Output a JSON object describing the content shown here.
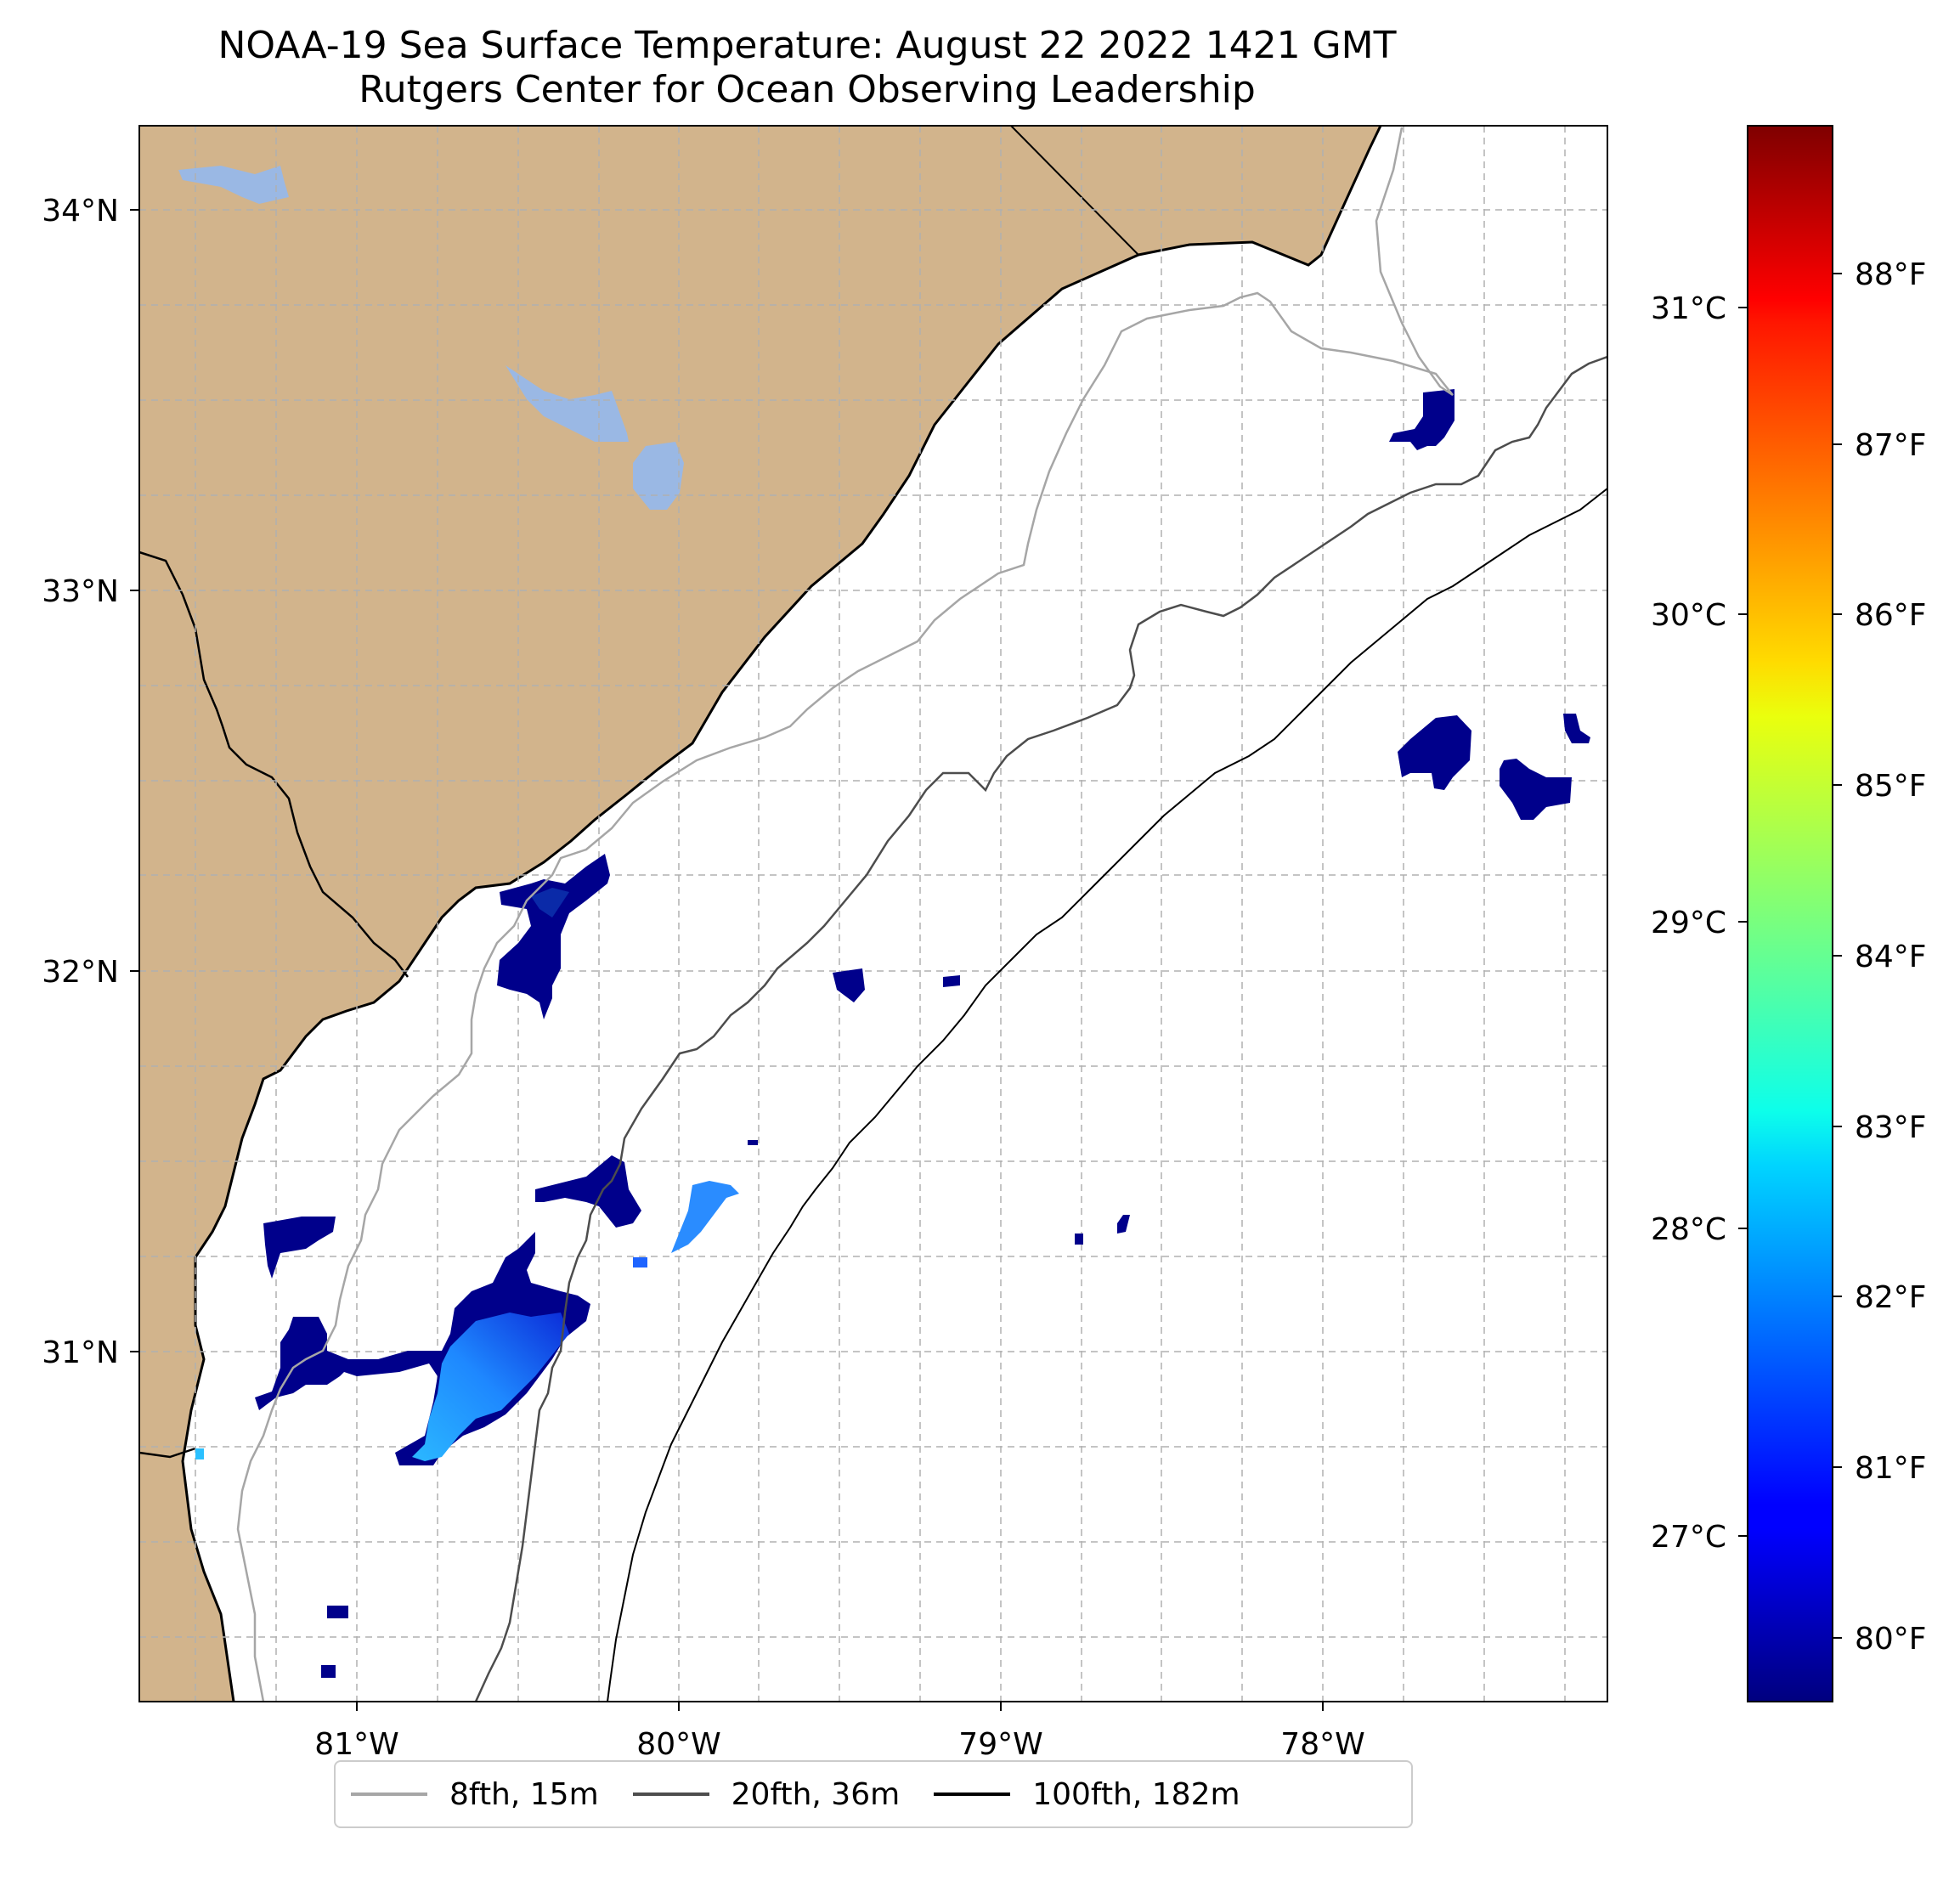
{
  "title": {
    "line1": "NOAA-19 Sea Surface Temperature: August 22 2022 1421 GMT",
    "line2": "Rutgers Center for Ocean Observing Leadership"
  },
  "map": {
    "lon_range": [
      -81.68,
      -77.13
    ],
    "lat_range": [
      30.07,
      34.22
    ],
    "lon_ticks": [
      "81°W",
      "80°W",
      "79°W",
      "78°W"
    ],
    "lat_ticks": [
      "34°N",
      "33°N",
      "32°N",
      "31°N"
    ],
    "colors": {
      "land": "#d2b48c",
      "lake": "#9ab8e4",
      "grid": "#b0b0b0",
      "isobath_8fth": "#a6a6a6",
      "isobath_20fth": "#4d4d4d",
      "isobath_100fth": "#000000"
    }
  },
  "colorbar": {
    "colormap": "jet",
    "celsius_labels": [
      "31°C",
      "30°C",
      "29°C",
      "28°C",
      "27°C"
    ],
    "fahrenheit_labels": [
      "88°F",
      "87°F",
      "86°F",
      "85°F",
      "84°F",
      "83°F",
      "82°F",
      "81°F",
      "80°F"
    ]
  },
  "legend": {
    "items": [
      {
        "label": "8fth, 15m",
        "color": "#a6a6a6"
      },
      {
        "label": "20fth, 36m",
        "color": "#4d4d4d"
      },
      {
        "label": "100fth, 182m",
        "color": "#000000"
      }
    ]
  }
}
